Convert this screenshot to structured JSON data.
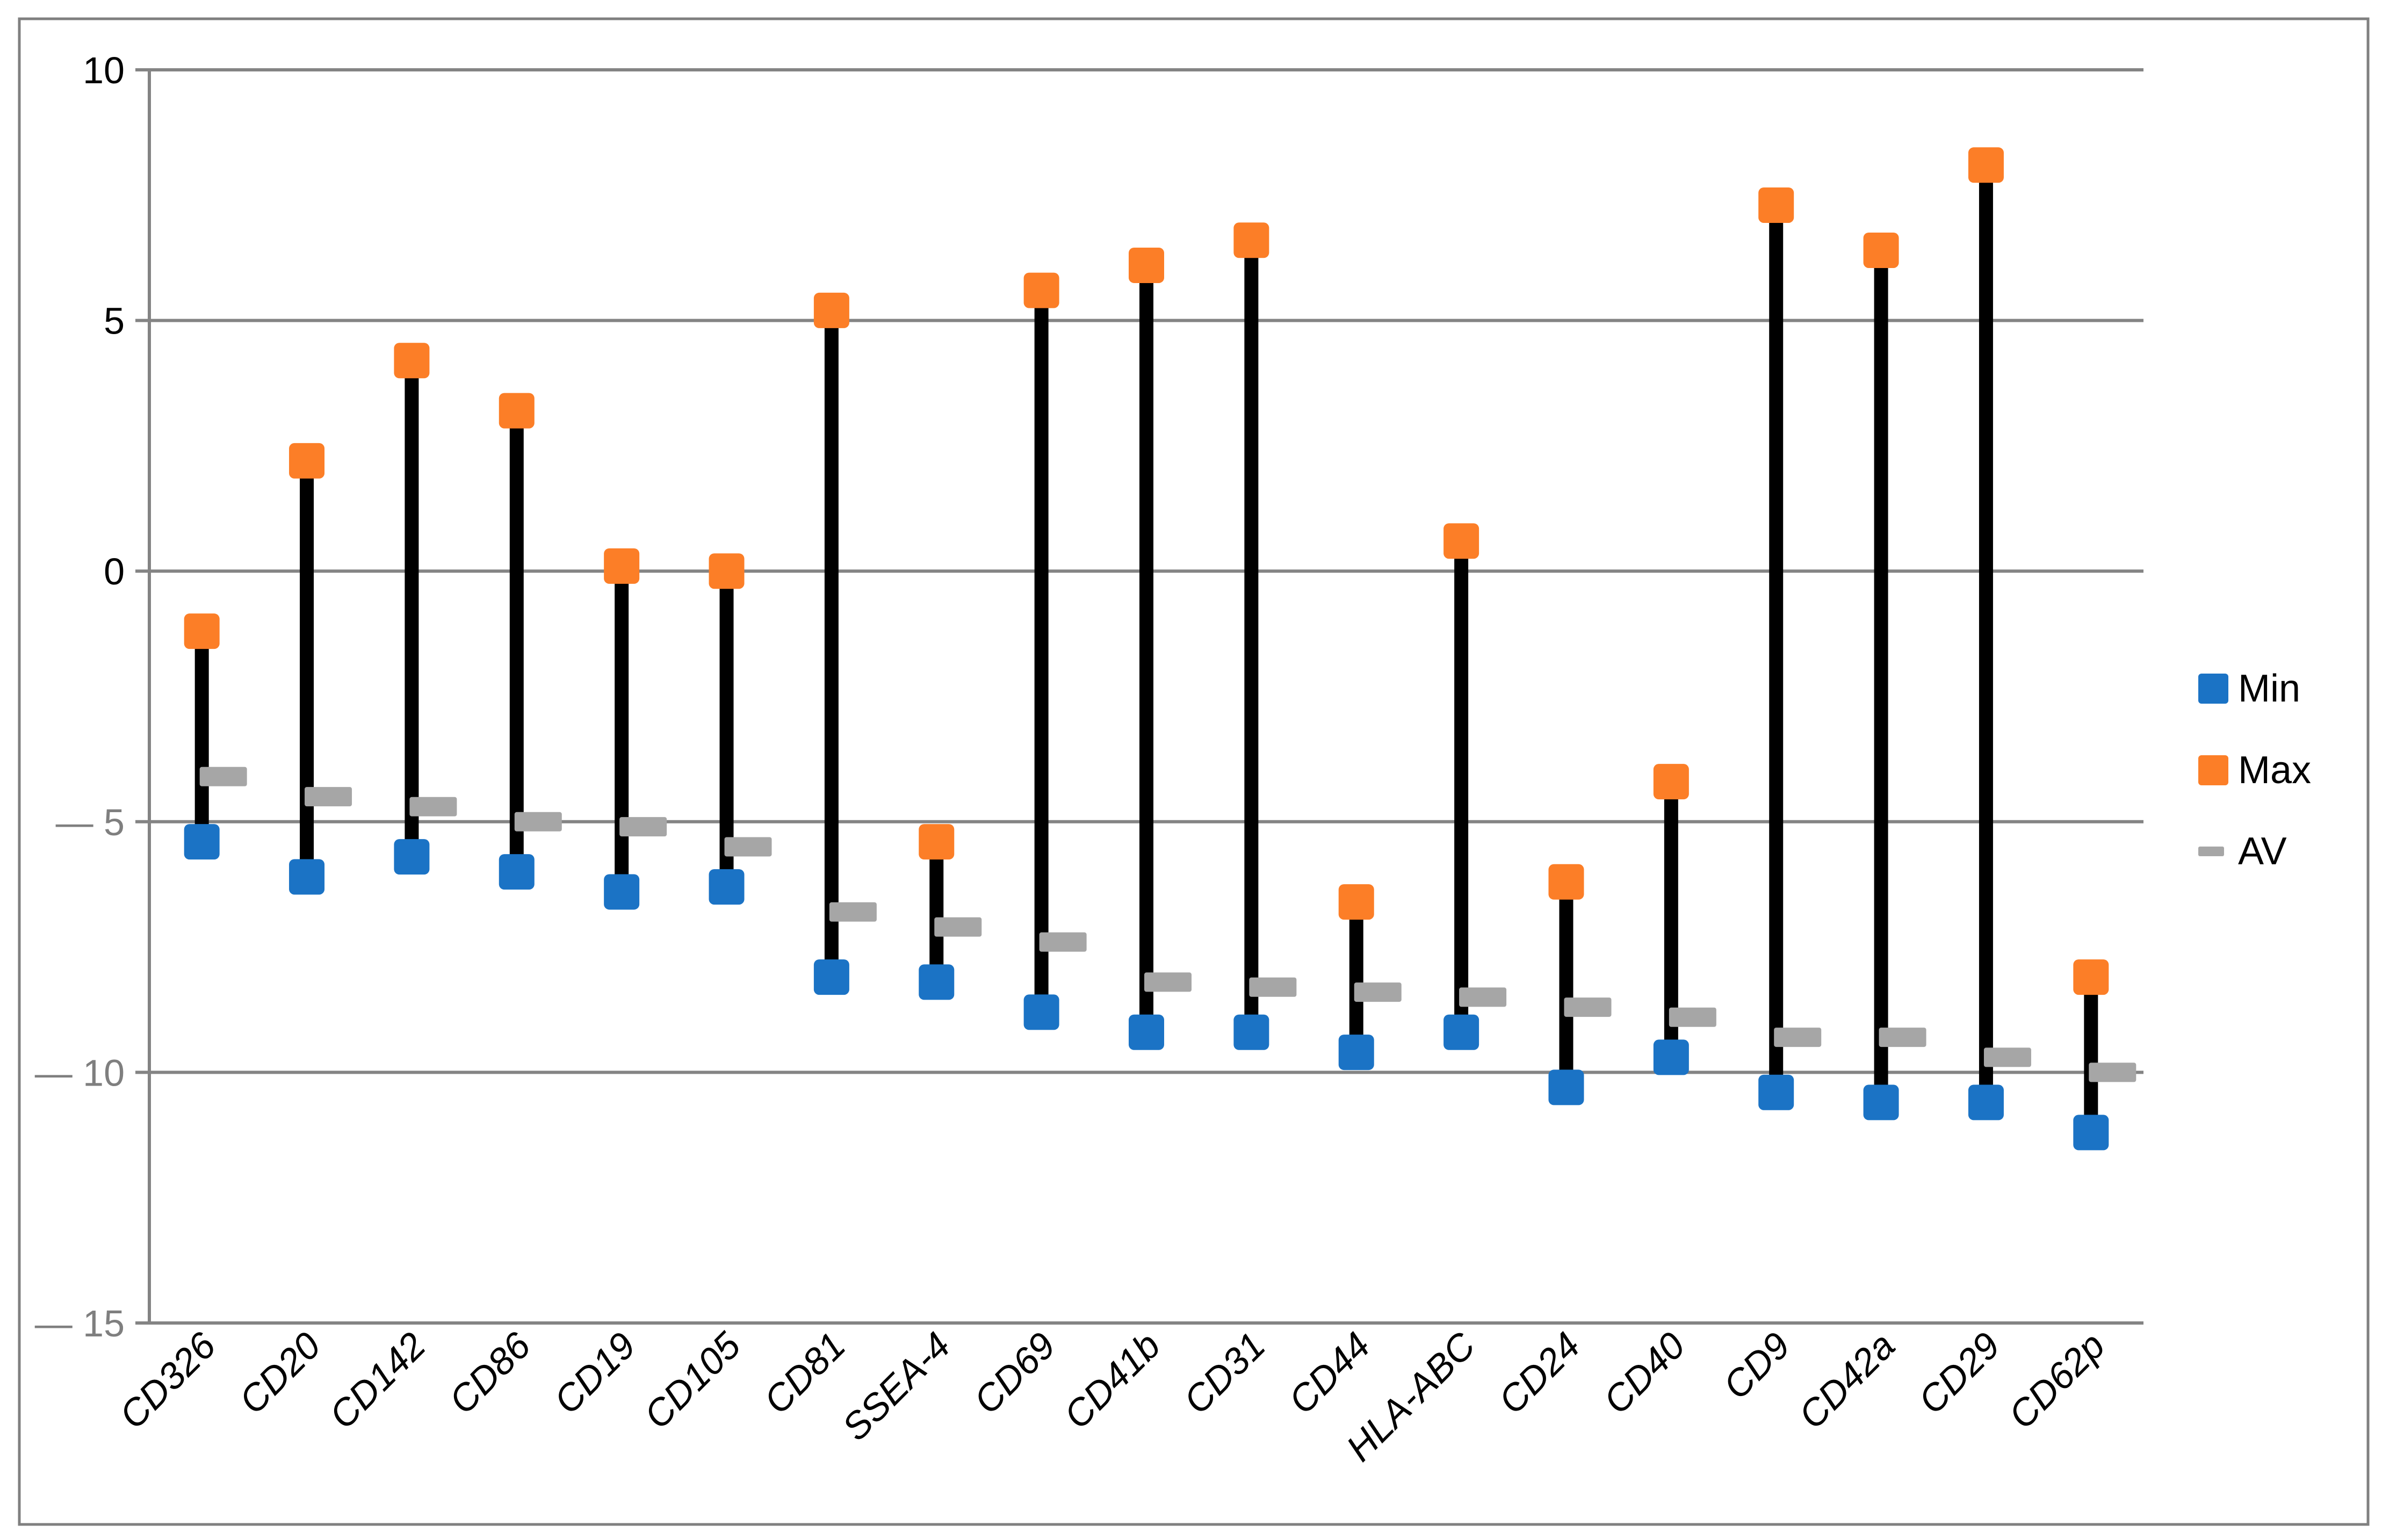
{
  "figure": {
    "background": "#FFFFFF",
    "border_color": "#808080"
  },
  "legend": {
    "position": "right",
    "items": [
      {
        "label": "Min",
        "marker": "square",
        "color": "#1B73C5"
      },
      {
        "label": "Max",
        "marker": "square",
        "color": "#FC7E27"
      },
      {
        "label": "AV",
        "marker": "dash",
        "color": "#A6A6A6"
      }
    ]
  },
  "chart_data": {
    "type": "hilo-line",
    "description": "Min–Max range lines with average dash markers per surface marker",
    "title": "",
    "xlabel": "",
    "ylabel": "",
    "categories": [
      "CD326",
      "CD20",
      "CD142",
      "CD86",
      "CD19",
      "CD105",
      "CD81",
      "SSEA-4",
      "CD69",
      "CD41b",
      "CD31",
      "CD44",
      "HLA-ABC",
      "CD24",
      "CD40",
      "CD9",
      "CD42a",
      "CD29",
      "CD62p"
    ],
    "series": [
      {
        "name": "Min",
        "marker": "square",
        "color": "#1B73C5",
        "values": [
          -5.4,
          -6.1,
          -5.7,
          -6.0,
          -6.4,
          -6.3,
          -8.1,
          -8.2,
          -8.8,
          -9.2,
          -9.2,
          -9.6,
          -9.2,
          -10.3,
          -9.7,
          -10.4,
          -10.6,
          -10.6,
          -11.2
        ]
      },
      {
        "name": "Max",
        "marker": "square",
        "color": "#FC7E27",
        "values": [
          -1.2,
          2.2,
          4.2,
          3.2,
          0.1,
          0.0,
          5.2,
          -5.4,
          5.6,
          6.1,
          6.6,
          -6.6,
          0.6,
          -6.2,
          -4.2,
          7.3,
          6.4,
          8.1,
          -8.1
        ]
      },
      {
        "name": "AV",
        "marker": "dash",
        "color": "#A6A6A6",
        "values": [
          -4.1,
          -4.5,
          -4.7,
          -5.0,
          -5.1,
          -5.5,
          -6.8,
          -7.1,
          -7.4,
          -8.2,
          -8.3,
          -8.4,
          -8.5,
          -8.7,
          -8.9,
          -9.3,
          -9.3,
          -9.7,
          -10.0
        ]
      }
    ],
    "ylim": [
      -15,
      10
    ],
    "ytick_step": 5,
    "yticks": [
      {
        "value": 10,
        "label": "10"
      },
      {
        "value": 5,
        "label": "5"
      },
      {
        "value": 0,
        "label": "0"
      },
      {
        "value": -5,
        "label": "— 5"
      },
      {
        "value": -10,
        "label": "— 10"
      },
      {
        "value": -15,
        "label": "— 15"
      }
    ],
    "ytick_label_colors": {
      "positive": "#000000",
      "negative": "#7F7F7F"
    },
    "grid": true,
    "gridline_color": "#848484",
    "hilo_line_color": "#000000",
    "x_labels_rotation_deg": -45,
    "legend_position": "right"
  }
}
